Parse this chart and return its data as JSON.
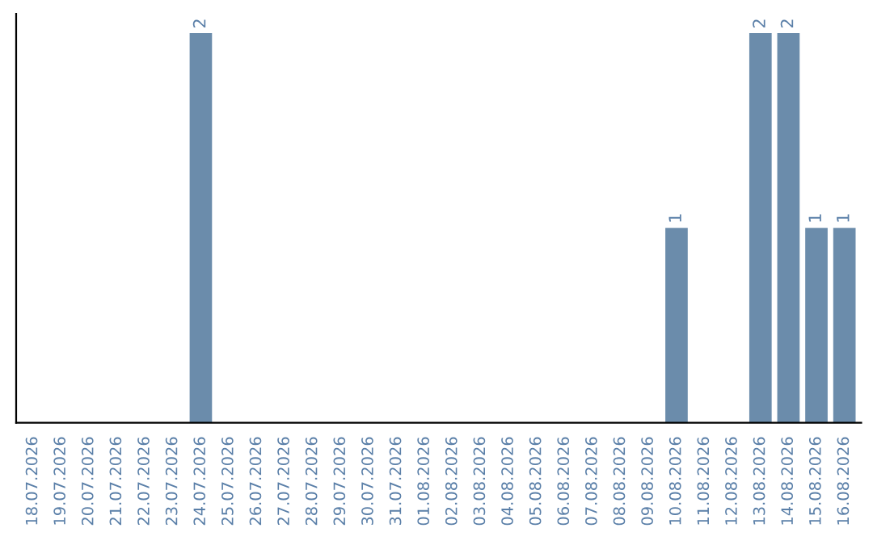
{
  "chart_data": {
    "type": "bar",
    "categories": [
      "18.07.2026",
      "19.07.2026",
      "20.07.2026",
      "21.07.2026",
      "22.07.2026",
      "23.07.2026",
      "24.07.2026",
      "25.07.2026",
      "26.07.2026",
      "27.07.2026",
      "28.07.2026",
      "29.07.2026",
      "30.07.2026",
      "31.07.2026",
      "01.08.2026",
      "02.08.2026",
      "03.08.2026",
      "04.08.2026",
      "05.08.2026",
      "06.08.2026",
      "07.08.2026",
      "08.08.2026",
      "09.08.2026",
      "10.08.2026",
      "11.08.2026",
      "12.08.2026",
      "13.08.2026",
      "14.08.2026",
      "15.08.2026",
      "16.08.2026"
    ],
    "values": [
      0,
      0,
      0,
      0,
      0,
      0,
      2,
      0,
      0,
      0,
      0,
      0,
      0,
      0,
      0,
      0,
      0,
      0,
      0,
      0,
      0,
      0,
      0,
      1,
      0,
      0,
      2,
      2,
      1,
      1
    ],
    "value_labels": [
      null,
      null,
      null,
      null,
      null,
      null,
      "2",
      null,
      null,
      null,
      null,
      null,
      null,
      null,
      null,
      null,
      null,
      null,
      null,
      null,
      null,
      null,
      null,
      "1",
      null,
      null,
      "2",
      "2",
      "1",
      "1"
    ],
    "color": "#6b8cab",
    "grid": false,
    "legend": false
  }
}
